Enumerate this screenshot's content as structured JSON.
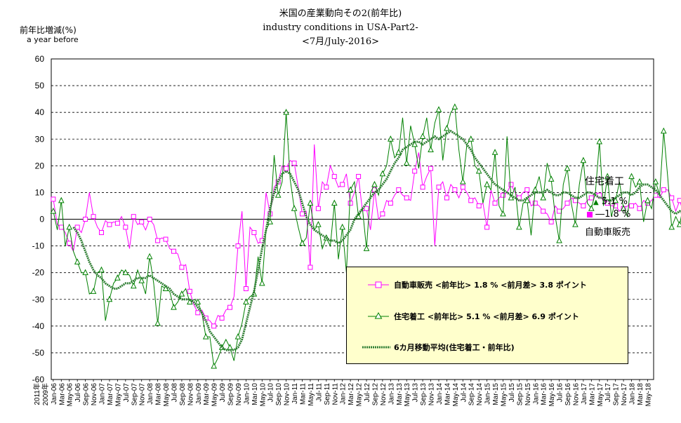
{
  "chart_data": {
    "type": "line",
    "title": "米国の産業動向その2(前年比)",
    "subtitle": "industry conditions in USA-Part2-",
    "period": "<7月/July-2016>",
    "ylabel": "前年比増減(%)",
    "ylabel_en": "a year before",
    "ylim": [
      -60,
      60
    ],
    "yticks": [
      60,
      50,
      40,
      30,
      20,
      10,
      0,
      -10,
      -20,
      -30,
      -40,
      -50,
      -60
    ],
    "grid": true,
    "x_axis_note": [
      "2011年",
      "2009年"
    ],
    "xticks": [
      "Jan-06",
      "Mar-06",
      "May-06",
      "Jul-06",
      "Sep-06",
      "Nov-06",
      "Jan-07",
      "Mar-07",
      "May-07",
      "Jul-07",
      "Sep-07",
      "Nov-07",
      "Jan-08",
      "Mar-08",
      "May-08",
      "Jul-08",
      "Sep-08",
      "Nov-08",
      "Jan-09",
      "Mar-09",
      "May-09",
      "Jul-09",
      "Sep-09",
      "Nov-09",
      "Jan-10",
      "Mar-10",
      "May-10",
      "Jul-10",
      "Sep-10",
      "Nov-10",
      "Jan-11",
      "Mar-11",
      "May-11",
      "Jul-11",
      "Sep-11",
      "Nov-11",
      "Jan-12",
      "Mar-12",
      "May-12",
      "Jul-12",
      "Sep-12",
      "Nov-12",
      "Jan-13",
      "Mar-13",
      "May-13",
      "Jul-13",
      "Sep-13",
      "Nov-13",
      "Jan-14",
      "Mar-14",
      "May-14",
      "Jul-14",
      "Sep-14",
      "Nov-14",
      "Jan-15",
      "Mar-15",
      "May-15",
      "Jul-15",
      "Sep-15",
      "Nov-15",
      "Jan-16",
      "Mar-16",
      "May-16",
      "Jul-16",
      "Sep-16",
      "Nov-16",
      "Jan-17",
      "Mar-17",
      "May-17",
      "Jul-17",
      "Sep-17",
      "Nov-17",
      "Jan-18",
      "Mar-18",
      "May-18"
    ],
    "x_start": "Jan-06",
    "series": [
      {
        "name": "自動車販売",
        "legend": "自動車販売 <前年比> 1.8 % <前月差> 3.8 ポイント",
        "color": "#ff00ff",
        "marker": "square",
        "values": [
          7.5,
          -2,
          -3,
          -5,
          -9,
          -12,
          -3,
          -5,
          0,
          10,
          1,
          -3,
          -5,
          -0.5,
          -2,
          -1,
          -1.5,
          1,
          -3,
          -11,
          1,
          -2,
          -1,
          -4,
          0,
          -2,
          -8,
          -7,
          -7.5,
          -11,
          -12,
          -13,
          -18,
          -17,
          -27,
          -32,
          -35,
          -34,
          -37,
          -38,
          -40,
          -36,
          -37,
          -34,
          -33,
          -29,
          -10,
          3,
          -26,
          -3,
          -5,
          -9,
          -8,
          10,
          2,
          12,
          14,
          20,
          19,
          22,
          21,
          12,
          2,
          3,
          -18,
          28,
          4,
          14,
          12,
          20,
          16,
          12,
          13,
          17,
          6,
          10,
          16,
          3,
          4,
          -4,
          11,
          0,
          2,
          7,
          6,
          9,
          11,
          9,
          8,
          7,
          18,
          25,
          12,
          16,
          19,
          -10,
          12,
          14,
          8,
          13,
          11,
          8,
          12,
          10,
          7,
          8,
          5,
          6,
          -3,
          11,
          6,
          8,
          9,
          10,
          13,
          10,
          8,
          10,
          11,
          5,
          6,
          5,
          3,
          2,
          -1,
          5,
          3,
          4,
          6,
          8,
          7,
          6,
          5,
          7,
          8,
          10,
          9,
          7,
          6,
          5,
          5,
          3,
          4,
          5,
          5,
          6,
          4,
          7,
          6,
          7,
          9,
          8,
          11,
          11,
          8,
          3,
          7,
          2,
          5,
          -3,
          -2,
          -1,
          -1.7,
          1.8
        ]
      },
      {
        "name": "住宅着工",
        "legend": "住宅着工 <前年比> 5.1 % <前月差> 6.9 ポイント",
        "color": "#008000",
        "marker": "triangle",
        "values": [
          3,
          -4,
          7,
          -10,
          -3,
          -12,
          -16,
          -20,
          -20,
          -28,
          -27,
          -20,
          -19,
          -38,
          -30,
          -24,
          -22,
          -19,
          -20,
          -21,
          -25,
          -19,
          -23,
          -28,
          -14,
          -24,
          -39,
          -25,
          -26,
          -27,
          -33,
          -31,
          -28,
          -26,
          -31,
          -30,
          -31,
          -35,
          -44,
          -44,
          -55,
          -52,
          -48,
          -45,
          -48,
          -53,
          -44,
          -39,
          -31,
          -29,
          -28,
          -14,
          -24,
          -4,
          -1,
          24,
          9,
          14,
          40,
          15,
          4,
          -3,
          -9,
          -7,
          6,
          -4,
          -2,
          -11,
          -7,
          -10,
          6,
          -15,
          -3,
          -20,
          11,
          14,
          1,
          4,
          -11,
          10,
          13,
          9,
          17,
          20,
          30,
          23,
          25,
          38,
          21,
          35,
          28,
          19,
          31,
          38,
          26,
          36,
          41,
          22,
          34,
          40,
          42,
          26,
          14,
          28,
          30,
          20,
          18,
          6,
          13,
          11,
          25,
          5,
          2,
          31,
          8,
          12,
          -3,
          6,
          7,
          -6,
          11,
          16,
          8,
          21,
          15,
          1,
          -8,
          13,
          19,
          6,
          -2,
          13,
          22,
          6,
          4,
          10,
          29,
          5,
          16,
          1,
          7,
          14,
          4,
          1,
          16,
          12,
          14,
          -1,
          7,
          4,
          14,
          9,
          33,
          16,
          -3,
          1,
          -2,
          6,
          -1,
          4,
          -0.6,
          5.1
        ]
      },
      {
        "name": "6カ月移動平均(住宅着工・前年比)",
        "legend": "6カ月移動平均(住宅着工・前年比)",
        "color": "#2e7d32",
        "marker": "circle",
        "values": [
          null,
          null,
          null,
          null,
          null,
          -3,
          -5,
          -8,
          -12,
          -16,
          -19,
          -21,
          -22,
          -24,
          -25,
          -26,
          -26,
          -25,
          -24,
          -24,
          -23,
          -22,
          -22,
          -22,
          -21,
          -22,
          -23,
          -24,
          -25,
          -26,
          -28,
          -29,
          -30,
          -30,
          -30,
          -31,
          -33,
          -35,
          -38,
          -42,
          -44,
          -46,
          -48,
          -49,
          -49,
          -49,
          -48,
          -45,
          -39,
          -33,
          -27,
          -19,
          -11,
          -4,
          4,
          10,
          14,
          17,
          18,
          17,
          14,
          11,
          6,
          1,
          -2,
          -4,
          -5,
          -6,
          -7,
          -8,
          -8,
          -9,
          -8,
          -6,
          -4,
          0,
          2,
          4,
          6,
          8,
          10,
          11,
          13,
          15,
          18,
          21,
          23,
          26,
          27,
          28,
          29,
          29,
          28,
          29,
          30,
          31,
          30,
          31,
          32,
          33,
          32,
          31,
          30,
          28,
          26,
          23,
          21,
          19,
          17,
          15,
          13,
          12,
          11,
          10,
          9,
          8,
          7,
          7,
          8,
          9,
          10,
          10,
          10,
          11,
          10,
          9,
          9,
          10,
          10,
          9,
          8,
          8,
          9,
          10,
          10,
          9,
          8,
          8,
          7,
          7,
          8,
          9,
          10,
          10,
          9,
          10,
          12,
          13,
          13,
          12,
          11,
          9,
          7,
          5,
          3,
          2,
          3,
          2,
          3,
          4
        ]
      }
    ],
    "side_labels": {
      "housing": "住宅着工",
      "housing_value": "5.1 %",
      "auto": "1.8 %",
      "auto_name": "自動車販売"
    }
  }
}
